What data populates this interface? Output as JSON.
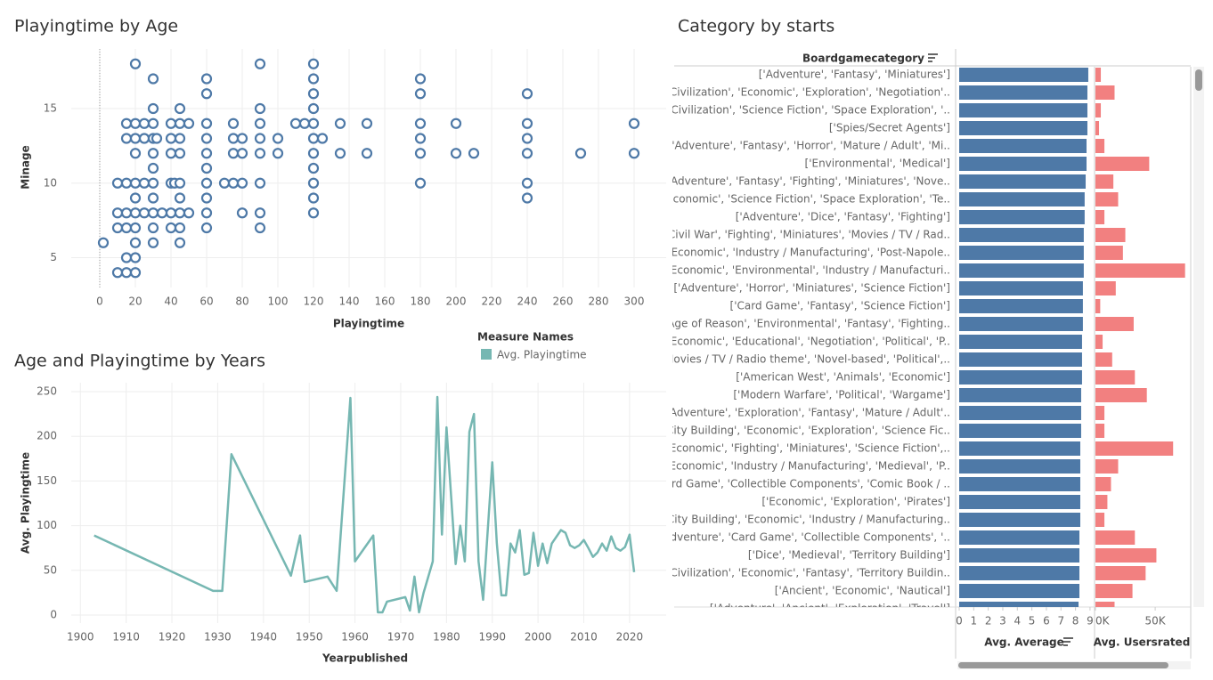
{
  "chart_data": [
    {
      "type": "scatter",
      "title": "Playingtime by Age",
      "x_label": "Playingtime",
      "y_label": "Minage",
      "color": "#4e79a7",
      "x": [
        20,
        90,
        120,
        30,
        60,
        120,
        180,
        60,
        120,
        180,
        240,
        30,
        45,
        90,
        120,
        15,
        20,
        25,
        30,
        40,
        45,
        50,
        60,
        75,
        90,
        110,
        115,
        120,
        135,
        150,
        180,
        200,
        240,
        300,
        15,
        20,
        25,
        30,
        32,
        40,
        45,
        60,
        75,
        80,
        90,
        100,
        120,
        125,
        180,
        240,
        20,
        30,
        40,
        45,
        60,
        75,
        80,
        90,
        100,
        120,
        135,
        150,
        180,
        200,
        210,
        240,
        270,
        300,
        30,
        60,
        120,
        10,
        15,
        20,
        25,
        30,
        40,
        42,
        45,
        60,
        70,
        75,
        80,
        90,
        120,
        180,
        240,
        20,
        30,
        45,
        60,
        120,
        240,
        10,
        15,
        20,
        25,
        30,
        35,
        40,
        45,
        50,
        60,
        80,
        90,
        120,
        10,
        15,
        20,
        30,
        40,
        45,
        60,
        90,
        2,
        20,
        30,
        45,
        15,
        20,
        10,
        15,
        20
      ],
      "values": [
        18,
        18,
        18,
        17,
        17,
        17,
        17,
        16,
        16,
        16,
        16,
        15,
        15,
        15,
        15,
        14,
        14,
        14,
        14,
        14,
        14,
        14,
        14,
        14,
        14,
        14,
        14,
        14,
        14,
        14,
        14,
        14,
        14,
        14,
        13,
        13,
        13,
        13,
        13,
        13,
        13,
        13,
        13,
        13,
        13,
        13,
        13,
        13,
        13,
        13,
        12,
        12,
        12,
        12,
        12,
        12,
        12,
        12,
        12,
        12,
        12,
        12,
        12,
        12,
        12,
        12,
        12,
        12,
        11,
        11,
        11,
        10,
        10,
        10,
        10,
        10,
        10,
        10,
        10,
        10,
        10,
        10,
        10,
        10,
        10,
        10,
        10,
        9,
        9,
        9,
        9,
        9,
        9,
        8,
        8,
        8,
        8,
        8,
        8,
        8,
        8,
        8,
        8,
        8,
        8,
        8,
        7,
        7,
        7,
        7,
        7,
        7,
        7,
        7,
        6,
        6,
        6,
        6,
        5,
        5,
        4,
        4,
        4
      ],
      "xlim": [
        -16,
        318
      ],
      "xticks": [
        0,
        20,
        40,
        60,
        80,
        100,
        120,
        140,
        160,
        180,
        200,
        220,
        240,
        260,
        280,
        300
      ],
      "ylim": [
        3,
        19
      ],
      "yticks": [
        5,
        10,
        15
      ],
      "grid": true
    },
    {
      "type": "line",
      "title": "Age and Playingtime by Years",
      "x_label": "Yearpublished",
      "y_label": "Avg. Playingtime",
      "legend_title": "Measure Names",
      "x": [
        1903,
        1929,
        1931,
        1933,
        1946,
        1948,
        1949,
        1954,
        1956,
        1959,
        1960,
        1964,
        1965,
        1966,
        1967,
        1971,
        1972,
        1973,
        1974,
        1975,
        1977,
        1978,
        1979,
        1980,
        1982,
        1983,
        1984,
        1985,
        1986,
        1987,
        1988,
        1990,
        1991,
        1992,
        1993,
        1994,
        1995,
        1996,
        1997,
        1998,
        1999,
        2000,
        2001,
        2002,
        2003,
        2005,
        2006,
        2007,
        2008,
        2009,
        2010,
        2011,
        2012,
        2013,
        2014,
        2015,
        2016,
        2017,
        2018,
        2019,
        2020,
        2021
      ],
      "series": [
        {
          "name": "Avg. Playingtime",
          "color": "#76b7b2",
          "values": [
            89,
            27,
            27,
            180,
            44,
            89,
            37,
            43,
            27,
            243,
            60,
            89,
            3,
            3,
            15,
            20,
            5,
            43,
            3,
            25,
            60,
            244,
            90,
            210,
            57,
            100,
            60,
            205,
            225,
            60,
            17,
            171,
            80,
            22,
            22,
            80,
            70,
            95,
            45,
            47,
            92,
            55,
            80,
            58,
            80,
            95,
            92,
            78,
            75,
            78,
            84,
            75,
            65,
            70,
            80,
            72,
            88,
            75,
            72,
            76,
            90,
            48
          ]
        }
      ],
      "xlim": [
        1898,
        2028
      ],
      "xticks": [
        1900,
        1910,
        1920,
        1930,
        1940,
        1950,
        1960,
        1970,
        1980,
        1990,
        2000,
        2010,
        2020
      ],
      "ylim": [
        -9,
        260
      ],
      "yticks": [
        0,
        50,
        100,
        150,
        200,
        250
      ],
      "grid": true
    },
    {
      "type": "bar",
      "orientation": "horizontal",
      "title": "Category by starts",
      "y_label": "Boardgamecategory",
      "categories": [
        "['Adventure', 'Fantasy', 'Miniatures']",
        "['Civilization', 'Economic', 'Exploration', 'Negotiation'..",
        "['Civilization', 'Science Fiction', 'Space Exploration', '..",
        "['Spies/Secret Agents']",
        "['Adventure', 'Fantasy', 'Horror', 'Mature / Adult', 'Mi..",
        "['Environmental', 'Medical']",
        "['Adventure', 'Fantasy', 'Fighting', 'Miniatures', 'Nove..",
        "['Economic', 'Science Fiction', 'Space Exploration', 'Te..",
        "['Adventure', 'Dice', 'Fantasy', 'Fighting']",
        "['Civil War', 'Fighting', 'Miniatures', 'Movies / TV / Rad..",
        "['Economic', 'Industry / Manufacturing', 'Post-Napole..",
        "['Economic', 'Environmental', 'Industry / Manufacturi..",
        "['Adventure', 'Horror', 'Miniatures', 'Science Fiction']",
        "['Card Game', 'Fantasy', 'Science Fiction']",
        "['Age of Reason', 'Environmental', 'Fantasy', 'Fighting..",
        "['Economic', 'Educational', 'Negotiation', 'Political', 'P..",
        "['Movies / TV / Radio theme', 'Novel-based', 'Political',..",
        "['American West', 'Animals', 'Economic']",
        "['Modern Warfare', 'Political', 'Wargame']",
        "['Adventure', 'Exploration', 'Fantasy', 'Mature / Adult'..",
        "['City Building', 'Economic', 'Exploration', 'Science Fic..",
        "['Economic', 'Fighting', 'Miniatures', 'Science Fiction',..",
        "['Economic', 'Industry / Manufacturing', 'Medieval', 'P..",
        "['Card Game', 'Collectible Components', 'Comic Book / ..",
        "['Economic', 'Exploration', 'Pirates']",
        "['City Building', 'Economic', 'Industry / Manufacturing..",
        "['Adventure', 'Card Game', 'Collectible Components', '..",
        "['Dice', 'Medieval', 'Territory Building']",
        "['Civilization', 'Economic', 'Fantasy', 'Territory Buildin..",
        "['Ancient', 'Economic', 'Nautical']",
        "['Adventure', 'Ancient', 'Exploration', 'Travel']"
      ],
      "series": [
        {
          "name": "Avg. Average",
          "color": "#4e79a7",
          "xlim": [
            0,
            9.25
          ],
          "xticks": [
            0,
            1,
            2,
            3,
            4,
            5,
            6,
            7,
            8,
            9
          ],
          "values": [
            8.88,
            8.82,
            8.82,
            8.82,
            8.76,
            8.76,
            8.7,
            8.63,
            8.63,
            8.57,
            8.57,
            8.57,
            8.51,
            8.51,
            8.51,
            8.45,
            8.45,
            8.45,
            8.39,
            8.39,
            8.39,
            8.33,
            8.33,
            8.33,
            8.33,
            8.33,
            8.27,
            8.27,
            8.27,
            8.27,
            8.21
          ]
        },
        {
          "name": "Avg. Usersrated",
          "color": "#f28080",
          "xlim": [
            0,
            79000
          ],
          "xticks": [
            {
              "value": 0,
              "label": "0K"
            },
            {
              "value": 50000,
              "label": "50K"
            }
          ],
          "values": [
            4500,
            16000,
            4500,
            3000,
            7500,
            45000,
            15000,
            19000,
            7500,
            25000,
            23000,
            75000,
            17000,
            4000,
            32000,
            6000,
            14000,
            33000,
            43000,
            7500,
            7500,
            65000,
            19000,
            13000,
            10000,
            7500,
            33000,
            51000,
            42000,
            31000,
            16000
          ]
        }
      ]
    }
  ]
}
